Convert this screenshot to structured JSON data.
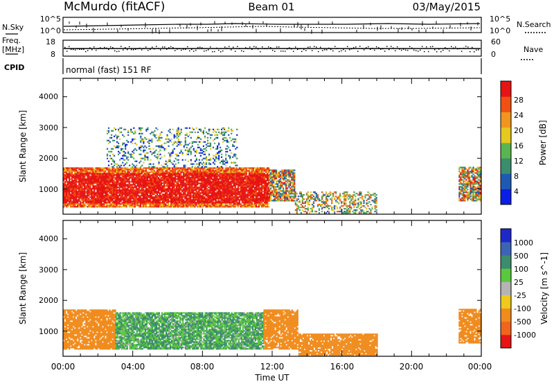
{
  "header": {
    "station": "McMurdo (fitACF)",
    "beam": "Beam 01",
    "date": "03/May/2015"
  },
  "aux_panels": {
    "nsky_label": "N.Sky",
    "nsky_ticks": [
      "10^5",
      "10^0"
    ],
    "nsearch_label": "N.Search",
    "nsearch_ticks": [
      "10^5",
      "10^0"
    ],
    "freq_label_1": "Freq.",
    "freq_label_2": "[MHz]",
    "freq_ticks": [
      "18",
      "8"
    ],
    "nave_label": "Nave",
    "nave_ticks": [
      "60",
      "0"
    ],
    "cpid_label": "CPID",
    "cpid_text": "normal (fast) 151 RF"
  },
  "chart_data": [
    {
      "type": "heatmap",
      "name": "power",
      "ylabel": "Slant Range [km]",
      "ytick_labels": [
        "1000",
        "2000",
        "3000",
        "4000"
      ],
      "ylim": [
        180,
        4600
      ],
      "colorbar_label": "Power [dB]",
      "colorbar_ticks": [
        "4",
        "8",
        "12",
        "16",
        "20",
        "24",
        "28"
      ],
      "colorbar_colors": [
        "#0a1ee6",
        "#1e5ab4",
        "#3c8c6e",
        "#5ab450",
        "#e6c81e",
        "#f0961e",
        "#f05014",
        "#e61414"
      ],
      "regions": [
        {
          "t_start": 0.0,
          "t_end": 11.8,
          "r_min": 400,
          "r_max": 1700,
          "level": "strong"
        },
        {
          "t_start": 11.8,
          "t_end": 13.3,
          "r_min": 600,
          "r_max": 1600,
          "level": "medium"
        },
        {
          "t_start": 13.3,
          "t_end": 18.0,
          "r_min": 200,
          "r_max": 900,
          "level": "weak"
        },
        {
          "t_start": 22.7,
          "t_end": 24.0,
          "r_min": 600,
          "r_max": 1700,
          "level": "medium"
        },
        {
          "t_start": 2.5,
          "t_end": 10.0,
          "r_min": 1700,
          "r_max": 3000,
          "level": "scattered"
        }
      ]
    },
    {
      "type": "heatmap",
      "name": "velocity",
      "ylabel": "Slant Range [km]",
      "ytick_labels": [
        "1000",
        "2000",
        "3000",
        "4000"
      ],
      "ylim": [
        180,
        4600
      ],
      "colorbar_label": "Velocity [m s^-1]",
      "colorbar_ticks": [
        "1000",
        "500",
        "100",
        "25",
        "-25",
        "-100",
        "-500",
        "-1000"
      ],
      "colorbar_colors": [
        "#1e28c8",
        "#3c64b4",
        "#3c8c6e",
        "#5ac83c",
        "#b4b4b4",
        "#f0c81e",
        "#f08c1e",
        "#f0641e",
        "#e61414"
      ],
      "regions": [
        {
          "t_start": 0.0,
          "t_end": 3.0,
          "r_min": 400,
          "r_max": 1700,
          "velocity": -300
        },
        {
          "t_start": 3.0,
          "t_end": 11.5,
          "r_min": 400,
          "r_max": 1600,
          "velocity": 100
        },
        {
          "t_start": 11.5,
          "t_end": 13.5,
          "r_min": 400,
          "r_max": 1700,
          "velocity": -300
        },
        {
          "t_start": 13.5,
          "t_end": 18.0,
          "r_min": 200,
          "r_max": 900,
          "velocity": -200
        },
        {
          "t_start": 22.7,
          "t_end": 24.0,
          "r_min": 600,
          "r_max": 1700,
          "velocity": -300
        }
      ]
    }
  ],
  "xaxis": {
    "tick_labels": [
      "00:00",
      "04:00",
      "08:00",
      "12:00",
      "16:00",
      "20:00",
      "00:00"
    ],
    "xlabel": "Time UT",
    "xlim": [
      0,
      24
    ]
  }
}
